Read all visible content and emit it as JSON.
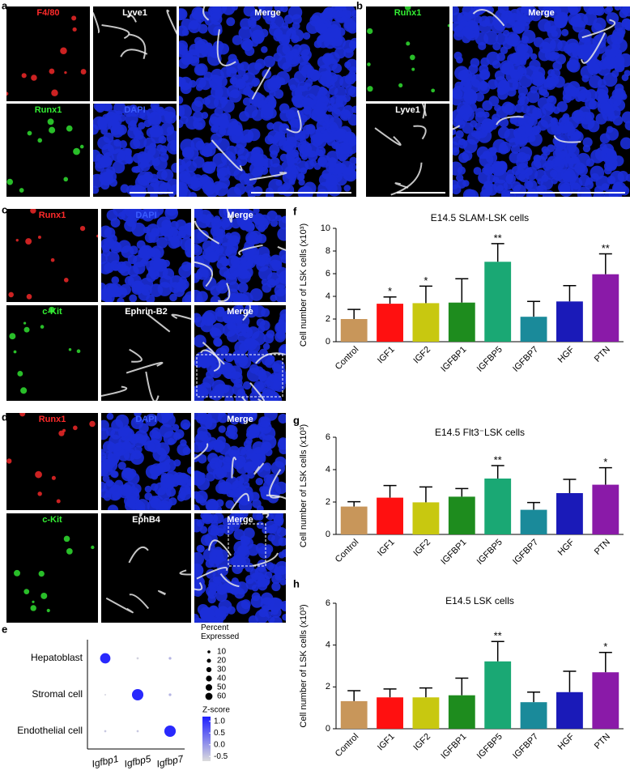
{
  "panels": [
    {
      "label": "a",
      "images": [
        {
          "label": "F4/80",
          "color": "#ff2a2a"
        },
        {
          "label": "Lyve1",
          "color": "#ffffff"
        },
        {
          "label": "Merge",
          "color": "#ffffff"
        },
        {
          "label": "Runx1",
          "color": "#33ee33"
        },
        {
          "label": "DAPI",
          "color": "#3a5cff"
        }
      ]
    },
    {
      "label": "b",
      "images": [
        {
          "label": "Runx1",
          "color": "#33ee33"
        },
        {
          "label": "Merge",
          "color": "#ffffff"
        },
        {
          "label": "Lyve1",
          "color": "#ffffff"
        }
      ]
    },
    {
      "label": "c",
      "images": [
        {
          "label": "Runx1",
          "color": "#ff2a2a"
        },
        {
          "label": "DAPI",
          "color": "#3a5cff"
        },
        {
          "label": "Merge",
          "color": "#ffffff"
        },
        {
          "label": "c-Kit",
          "color": "#33ee33"
        },
        {
          "label": "Ephrin-B2",
          "color": "#ffffff"
        },
        {
          "label": "Merge",
          "color": "#ffffff"
        }
      ]
    },
    {
      "label": "d",
      "images": [
        {
          "label": "Runx1",
          "color": "#ff2a2a"
        },
        {
          "label": "DAPI",
          "color": "#3a5cff"
        },
        {
          "label": "Merge",
          "color": "#ffffff"
        },
        {
          "label": "c-Kit",
          "color": "#33ee33"
        },
        {
          "label": "EphB4",
          "color": "#ffffff"
        },
        {
          "label": "Merge",
          "color": "#ffffff"
        }
      ]
    }
  ],
  "chart_data": [
    {
      "type": "dot",
      "label": "e",
      "rows": [
        "Hepatoblast",
        "Stromal cell",
        "Endothelial cell"
      ],
      "columns": [
        "Igfbp1",
        "Igfbp5",
        "Igfbp7"
      ],
      "points": [
        {
          "row": 0,
          "column": 0,
          "percent": 45,
          "z": 1.1
        },
        {
          "row": 0,
          "column": 1,
          "percent": 2,
          "z": -0.6
        },
        {
          "row": 0,
          "column": 2,
          "percent": 3,
          "z": -0.3
        },
        {
          "row": 1,
          "column": 0,
          "percent": 1,
          "z": -0.6
        },
        {
          "row": 1,
          "column": 1,
          "percent": 55,
          "z": 1.1
        },
        {
          "row": 1,
          "column": 2,
          "percent": 3,
          "z": -0.3
        },
        {
          "row": 2,
          "column": 0,
          "percent": 2,
          "z": -0.5
        },
        {
          "row": 2,
          "column": 1,
          "percent": 2,
          "z": -0.5
        },
        {
          "row": 2,
          "column": 2,
          "percent": 55,
          "z": 1.1
        }
      ],
      "size_title": "Percent Expressed",
      "size_ticks": [
        10,
        20,
        30,
        40,
        50,
        60
      ],
      "color_title": "Z-score",
      "zlim": [
        -0.7,
        1.2
      ],
      "zticks": [
        {
          "value": 1.0,
          "label": "1.0"
        },
        {
          "value": 0.5,
          "label": "0.5"
        },
        {
          "value": 0.0,
          "label": "0.0"
        },
        {
          "value": -0.5,
          "label": "-0.5"
        }
      ],
      "color_low": "#dcdcdc",
      "color_high": "#1f1fff"
    },
    {
      "type": "bar",
      "label": "f",
      "title": "E14.5 SLAM-LSK cells",
      "ylabel": "Cell number of LSK cells (x10³)",
      "categories": [
        "Control",
        "IGF1",
        "IGF2",
        "IGFBP1",
        "IGFBP5",
        "IGFBP7",
        "HGF",
        "PTN"
      ],
      "values": [
        2.0,
        3.35,
        3.4,
        3.45,
        7.05,
        2.2,
        3.55,
        5.95
      ],
      "errors": [
        0.85,
        0.6,
        1.5,
        2.1,
        1.6,
        1.35,
        1.4,
        1.8
      ],
      "colors": [
        "#c8965a",
        "#ff1010",
        "#c8c810",
        "#1e8c1e",
        "#1aa874",
        "#1a8a9a",
        "#1a1ab8",
        "#8a1aa8"
      ],
      "annotations": [
        {
          "category": "IGF1",
          "text": "*"
        },
        {
          "category": "IGF2",
          "text": "*"
        },
        {
          "category": "IGFBP5",
          "text": "**"
        },
        {
          "category": "PTN",
          "text": "**"
        }
      ],
      "ylim": [
        0,
        10
      ],
      "yticks": [
        0,
        2,
        4,
        6,
        8,
        10
      ]
    },
    {
      "type": "bar",
      "label": "g",
      "title": "E14.5 Flt3⁻LSK cells",
      "ylabel": "Cell number of LSK cells (x10³)",
      "categories": [
        "Control",
        "IGF1",
        "IGF2",
        "IGFBP1",
        "IGFBP5",
        "IGFBP7",
        "HGF",
        "PTN"
      ],
      "values": [
        1.72,
        2.27,
        1.98,
        2.33,
        3.45,
        1.52,
        2.55,
        3.07
      ],
      "errors": [
        0.3,
        0.75,
        0.95,
        0.5,
        0.8,
        0.45,
        0.85,
        1.05
      ],
      "colors": [
        "#c8965a",
        "#ff1010",
        "#c8c810",
        "#1e8c1e",
        "#1aa874",
        "#1a8a9a",
        "#1a1ab8",
        "#8a1aa8"
      ],
      "annotations": [
        {
          "category": "IGFBP5",
          "text": "**"
        },
        {
          "category": "PTN",
          "text": "*"
        }
      ],
      "ylim": [
        0,
        6
      ],
      "yticks": [
        0,
        2,
        4,
        6
      ]
    },
    {
      "type": "bar",
      "label": "h",
      "title": "E14.5 LSK cells",
      "ylabel": "Cell number of LSK cells (x10³)",
      "categories": [
        "Control",
        "IGF1",
        "IGF2",
        "IGFBP1",
        "IGFBP5",
        "IGFBP7",
        "HGF",
        "PTN"
      ],
      "values": [
        1.32,
        1.5,
        1.5,
        1.6,
        3.22,
        1.27,
        1.75,
        2.7
      ],
      "errors": [
        0.5,
        0.4,
        0.45,
        0.82,
        0.95,
        0.48,
        1.0,
        0.95
      ],
      "colors": [
        "#c8965a",
        "#ff1010",
        "#c8c810",
        "#1e8c1e",
        "#1aa874",
        "#1a8a9a",
        "#1a1ab8",
        "#8a1aa8"
      ],
      "annotations": [
        {
          "category": "IGFBP5",
          "text": "**"
        },
        {
          "category": "PTN",
          "text": "*"
        }
      ],
      "ylim": [
        0,
        6
      ],
      "yticks": [
        0,
        2,
        4,
        6
      ]
    }
  ]
}
